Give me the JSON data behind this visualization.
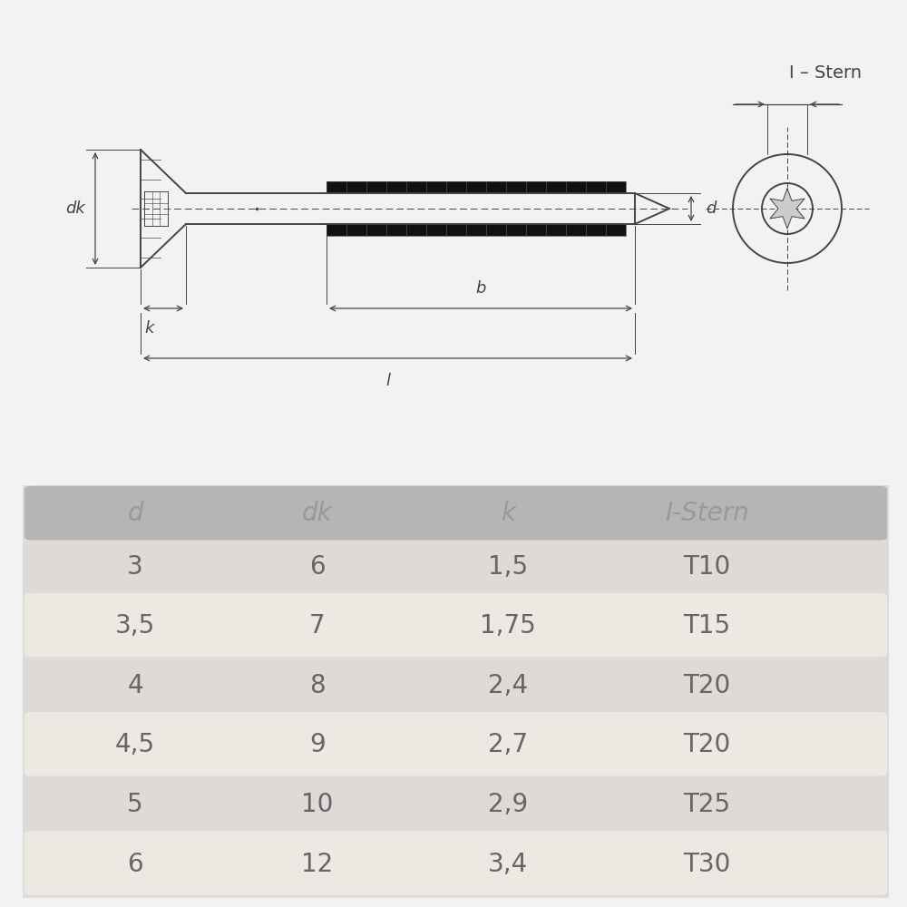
{
  "bg_color": "#f2f2f2",
  "diagram_bg": "#ffffff",
  "line_color": "#444444",
  "header_cols": [
    "d",
    "dk",
    "k",
    "I-Stern"
  ],
  "rows": [
    [
      "3",
      "6",
      "1,5",
      "T10"
    ],
    [
      "3,5",
      "7",
      "1,75",
      "T15"
    ],
    [
      "4",
      "8",
      "2,4",
      "T20"
    ],
    [
      "4,5",
      "9",
      "2,7",
      "T20"
    ],
    [
      "5",
      "10",
      "2,9",
      "T25"
    ],
    [
      "6",
      "12",
      "3,4",
      "T30"
    ]
  ],
  "header_text_color": "#999999",
  "data_text_color": "#666666",
  "table_header_bg": "#bbbbbb",
  "table_alt_row_bg": "#ede8e2",
  "table_main_bg": "#dddad8",
  "font_size_table": 20,
  "font_size_diagram": 13,
  "font_size_label": 14
}
